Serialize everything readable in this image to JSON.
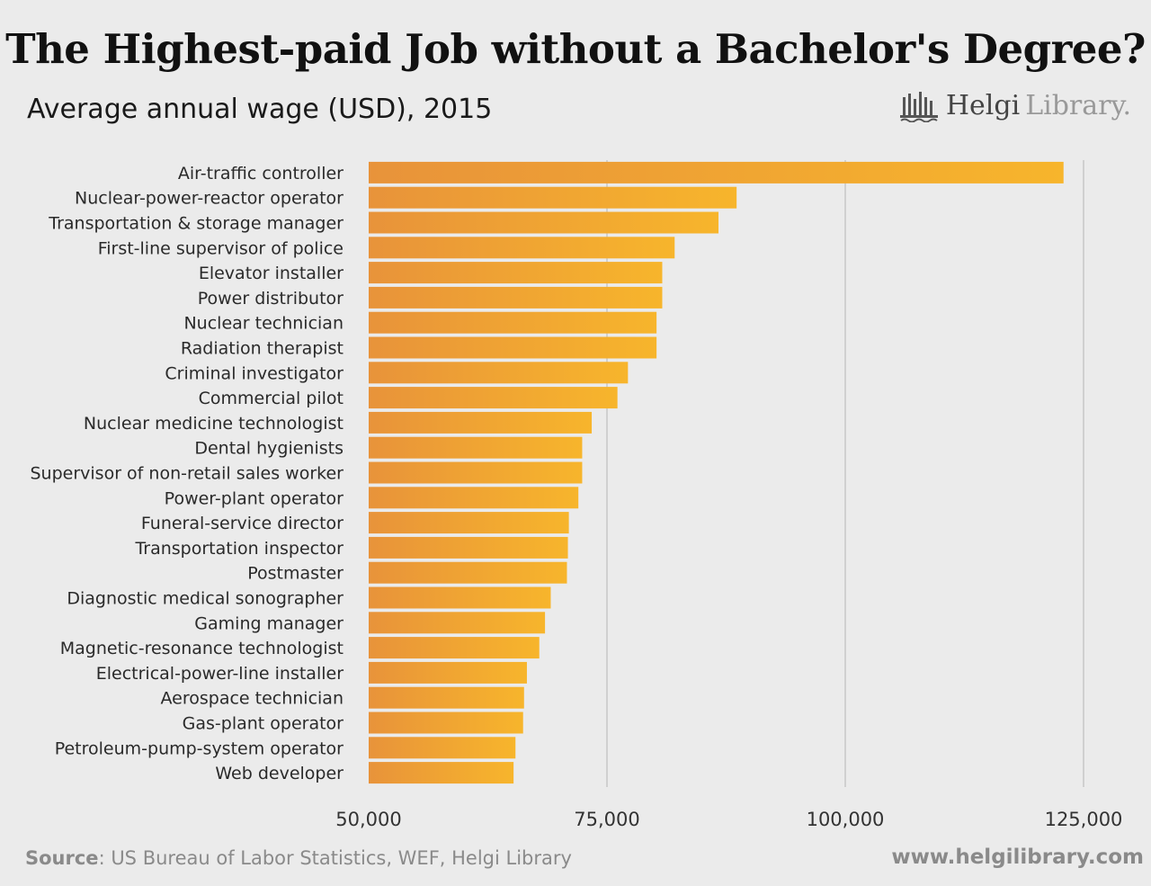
{
  "title": "The Highest-paid Job without a Bachelor's Degree?",
  "subtitle": "Average annual wage (USD), 2015",
  "logo": {
    "strong": "Helgi",
    "light": "Library."
  },
  "footer": {
    "source_label": "Source",
    "source_text": ": US Bureau of Labor Statistics, WEF, Helgi Library",
    "website": "www.helgilibrary.com"
  },
  "colors": {
    "bar_start": "#e8933a",
    "bar_end": "#f7b52c",
    "grid": "#c8c8c8",
    "background": "#ebebeb"
  },
  "chart_data": {
    "type": "bar",
    "orientation": "horizontal",
    "title": "The Highest-paid Job without a Bachelor's Degree?",
    "subtitle": "Average annual wage (USD), 2015",
    "categories": [
      "Air-traffic controller",
      "Nuclear-power-reactor operator",
      "Transportation & storage manager",
      "First-line supervisor of police",
      "Elevator installer",
      "Power distributor",
      "Nuclear technician",
      "Radiation therapist",
      "Criminal investigator",
      "Commercial pilot",
      "Nuclear medicine technologist",
      "Dental hygienists",
      "Supervisor of non-retail sales worker",
      "Power-plant operator",
      "Funeral-service director",
      "Transportation inspector",
      "Postmaster",
      "Diagnostic medical sonographer",
      "Gaming manager",
      "Magnetic-resonance technologist",
      "Electrical-power-line installer",
      "Aerospace technician",
      "Gas-plant operator",
      "Petroleum-pump-system operator",
      "Web developer"
    ],
    "values": [
      122900,
      88600,
      86700,
      82100,
      80800,
      80800,
      80200,
      80200,
      77200,
      76100,
      73400,
      72400,
      72400,
      72000,
      71000,
      70900,
      70800,
      69100,
      68500,
      67900,
      66600,
      66300,
      66200,
      65400,
      65200
    ],
    "xlim": [
      50000,
      125000
    ],
    "xticks": [
      "50,000",
      "75,000",
      "100,000",
      "125,000"
    ],
    "xtick_values": [
      50000,
      75000,
      100000,
      125000
    ],
    "grid": true,
    "legend": "none"
  }
}
